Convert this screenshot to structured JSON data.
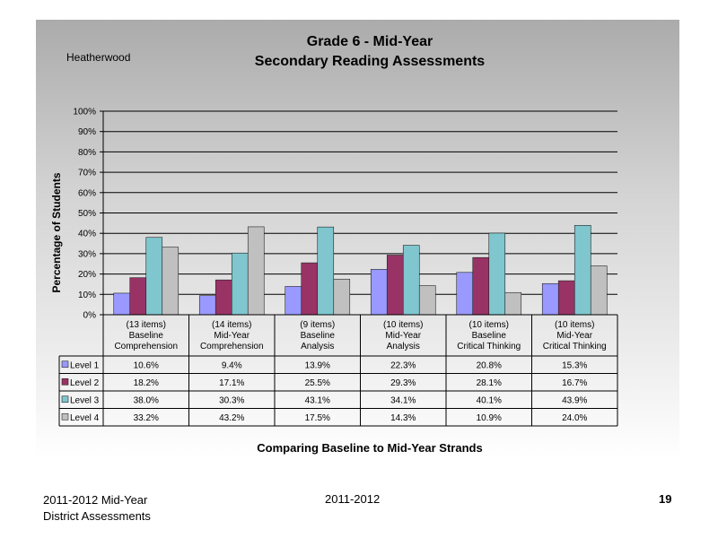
{
  "chart_data": {
    "type": "bar",
    "title": "Grade 6 - Mid-Year",
    "subtitle": "Secondary Reading Assessments",
    "school": "Heatherwood",
    "xlabel": "Comparing Baseline to Mid-Year Strands",
    "ylabel": "Percentage of Students",
    "ylim": [
      0,
      100
    ],
    "yticks": [
      "0%",
      "10%",
      "20%",
      "30%",
      "40%",
      "50%",
      "60%",
      "70%",
      "80%",
      "90%",
      "100%"
    ],
    "grid": true,
    "categories": [
      [
        "(13 items)",
        "Baseline",
        "Comprehension"
      ],
      [
        "(14 items)",
        "Mid-Year",
        "Comprehension"
      ],
      [
        "(9 items)",
        "Baseline",
        "Analysis"
      ],
      [
        "(10 items)",
        "Mid-Year",
        "Analysis"
      ],
      [
        "(10 items)",
        "Baseline",
        "Critical Thinking"
      ],
      [
        "(10 items)",
        "Mid-Year",
        "Critical Thinking"
      ]
    ],
    "series": [
      {
        "name": "Level 1",
        "color": "#9999ff",
        "values": [
          10.6,
          9.4,
          13.9,
          22.3,
          20.8,
          15.3
        ],
        "labels": [
          "10.6%",
          "9.4%",
          "13.9%",
          "22.3%",
          "20.8%",
          "15.3%"
        ]
      },
      {
        "name": "Level 2",
        "color": "#993366",
        "values": [
          18.2,
          17.1,
          25.5,
          29.3,
          28.1,
          16.7
        ],
        "labels": [
          "18.2%",
          "17.1%",
          "25.5%",
          "29.3%",
          "28.1%",
          "16.7%"
        ]
      },
      {
        "name": "Level 3",
        "color": "#7fc6cf",
        "values": [
          38.0,
          30.3,
          43.1,
          34.1,
          40.1,
          43.9
        ],
        "labels": [
          "38.0%",
          "30.3%",
          "43.1%",
          "34.1%",
          "40.1%",
          "43.9%"
        ]
      },
      {
        "name": "Level 4",
        "color": "#c0c0c0",
        "values": [
          33.2,
          43.2,
          17.5,
          14.3,
          10.9,
          24.0
        ],
        "labels": [
          "33.2%",
          "43.2%",
          "17.5%",
          "14.3%",
          "10.9%",
          "24.0%"
        ]
      }
    ],
    "table": true
  },
  "footer": {
    "left_line1": "2011-2012  Mid-Year",
    "left_line2": "District Assessments",
    "center": "2011-2012",
    "page_number": "19"
  }
}
